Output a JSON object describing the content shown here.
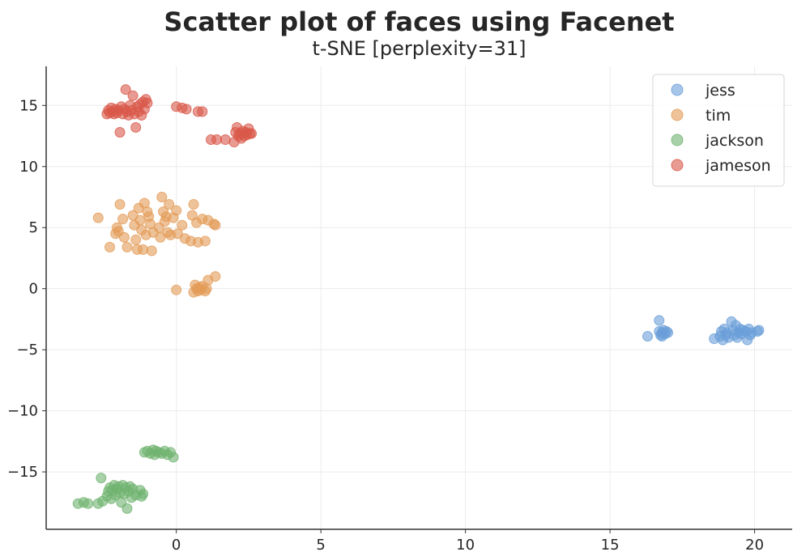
{
  "chart_data": {
    "type": "scatter",
    "title": "Scatter plot of faces using Facenet",
    "subtitle": "t-SNE [perplexity=31]",
    "xlabel": "",
    "ylabel": "",
    "xlim": [
      -4.5,
      21.3
    ],
    "ylim": [
      -19.7,
      18.2
    ],
    "xticks": [
      0,
      5,
      10,
      15,
      20
    ],
    "yticks": [
      15,
      10,
      5,
      0,
      -5,
      -10,
      -15
    ],
    "xtick_labels": [
      "0",
      "5",
      "10",
      "15",
      "20"
    ],
    "ytick_labels": [
      "15",
      "10",
      "5",
      "0",
      "−10",
      "−15"
    ],
    "ytick_labels_full": [
      "15",
      "10",
      "5",
      "0",
      "−5",
      "−10",
      "−15"
    ],
    "grid": true,
    "legend_position": "top-right",
    "series": [
      {
        "name": "jess",
        "color": "#6a9fd8",
        "points": [
          [
            16.3,
            -3.9
          ],
          [
            16.7,
            -2.6
          ],
          [
            16.7,
            -3.5
          ],
          [
            16.75,
            -3.8
          ],
          [
            16.8,
            -3.6
          ],
          [
            16.85,
            -3.4
          ],
          [
            16.9,
            -3.7
          ],
          [
            16.95,
            -3.5
          ],
          [
            17.0,
            -3.6
          ],
          [
            16.8,
            -3.9
          ],
          [
            18.6,
            -4.1
          ],
          [
            18.8,
            -3.9
          ],
          [
            18.85,
            -3.5
          ],
          [
            18.9,
            -4.2
          ],
          [
            18.95,
            -3.3
          ],
          [
            19.0,
            -3.8
          ],
          [
            19.05,
            -3.6
          ],
          [
            19.1,
            -4.0
          ],
          [
            19.2,
            -2.7
          ],
          [
            19.25,
            -3.4
          ],
          [
            19.3,
            -3.8
          ],
          [
            19.35,
            -3.0
          ],
          [
            19.4,
            -4.0
          ],
          [
            19.45,
            -3.6
          ],
          [
            19.5,
            -3.3
          ],
          [
            19.55,
            -3.7
          ],
          [
            19.6,
            -3.4
          ],
          [
            19.7,
            -3.5
          ],
          [
            19.75,
            -4.2
          ],
          [
            19.8,
            -3.3
          ],
          [
            19.85,
            -3.8
          ],
          [
            19.9,
            -3.6
          ],
          [
            20.1,
            -3.5
          ],
          [
            20.15,
            -3.4
          ]
        ]
      },
      {
        "name": "tim",
        "color": "#e39b57",
        "points": [
          [
            -2.7,
            5.8
          ],
          [
            -2.3,
            3.4
          ],
          [
            -2.1,
            4.5
          ],
          [
            -2.05,
            5.0
          ],
          [
            -2.0,
            4.7
          ],
          [
            -1.95,
            6.9
          ],
          [
            -1.85,
            5.7
          ],
          [
            -1.8,
            4.2
          ],
          [
            -1.7,
            3.4
          ],
          [
            -1.5,
            6.0
          ],
          [
            -1.45,
            5.2
          ],
          [
            -1.4,
            4.0
          ],
          [
            -1.35,
            3.2
          ],
          [
            -1.3,
            6.6
          ],
          [
            -1.25,
            5.6
          ],
          [
            -1.2,
            4.8
          ],
          [
            -1.15,
            3.2
          ],
          [
            -1.1,
            7.0
          ],
          [
            -1.05,
            4.4
          ],
          [
            -1.0,
            6.3
          ],
          [
            -0.95,
            5.9
          ],
          [
            -0.9,
            5.3
          ],
          [
            -0.85,
            3.1
          ],
          [
            -0.8,
            4.6
          ],
          [
            -0.6,
            5.0
          ],
          [
            -0.55,
            4.2
          ],
          [
            -0.5,
            7.5
          ],
          [
            -0.45,
            6.3
          ],
          [
            -0.4,
            5.5
          ],
          [
            -0.35,
            5.9
          ],
          [
            -0.3,
            4.6
          ],
          [
            -0.25,
            6.9
          ],
          [
            -0.2,
            4.4
          ],
          [
            -0.1,
            5.8
          ],
          [
            0.0,
            6.4
          ],
          [
            0.05,
            4.5
          ],
          [
            0.2,
            5.2
          ],
          [
            0.3,
            4.1
          ],
          [
            0.5,
            3.9
          ],
          [
            0.55,
            6.0
          ],
          [
            0.6,
            6.9
          ],
          [
            0.7,
            5.4
          ],
          [
            0.75,
            3.8
          ],
          [
            0.9,
            5.7
          ],
          [
            1.0,
            3.9
          ],
          [
            1.1,
            5.6
          ],
          [
            1.3,
            5.3
          ],
          [
            1.35,
            5.2
          ],
          [
            0.0,
            -0.1
          ],
          [
            0.6,
            -0.3
          ],
          [
            0.65,
            0.3
          ],
          [
            0.7,
            0.0
          ],
          [
            0.75,
            -0.2
          ],
          [
            0.8,
            0.1
          ],
          [
            0.85,
            -0.1
          ],
          [
            0.9,
            0.2
          ],
          [
            1.0,
            -0.2
          ],
          [
            1.05,
            0.0
          ],
          [
            1.1,
            0.7
          ],
          [
            1.35,
            1.0
          ]
        ]
      },
      {
        "name": "jackson",
        "color": "#6fb36f",
        "points": [
          [
            -3.4,
            -17.6
          ],
          [
            -3.2,
            -17.5
          ],
          [
            -3.05,
            -17.6
          ],
          [
            -2.7,
            -17.6
          ],
          [
            -2.6,
            -15.5
          ],
          [
            -2.55,
            -17.4
          ],
          [
            -2.4,
            -17.0
          ],
          [
            -2.35,
            -16.6
          ],
          [
            -2.3,
            -16.3
          ],
          [
            -2.25,
            -17.2
          ],
          [
            -2.2,
            -16.5
          ],
          [
            -2.15,
            -16.1
          ],
          [
            -2.1,
            -16.9
          ],
          [
            -2.05,
            -16.4
          ],
          [
            -2.0,
            -16.2
          ],
          [
            -1.95,
            -16.7
          ],
          [
            -1.9,
            -17.5
          ],
          [
            -1.85,
            -16.1
          ],
          [
            -1.8,
            -16.8
          ],
          [
            -1.75,
            -16.3
          ],
          [
            -1.7,
            -18.0
          ],
          [
            -1.65,
            -16.6
          ],
          [
            -1.6,
            -16.2
          ],
          [
            -1.55,
            -17.1
          ],
          [
            -1.5,
            -16.4
          ],
          [
            -1.4,
            -16.9
          ],
          [
            -1.25,
            -16.5
          ],
          [
            -1.2,
            -17.0
          ],
          [
            -1.15,
            -16.8
          ],
          [
            -1.1,
            -13.4
          ],
          [
            -1.0,
            -13.3
          ],
          [
            -0.9,
            -13.5
          ],
          [
            -0.8,
            -13.2
          ],
          [
            -0.75,
            -13.6
          ],
          [
            -0.7,
            -13.3
          ],
          [
            -0.6,
            -13.4
          ],
          [
            -0.5,
            -13.5
          ],
          [
            -0.4,
            -13.3
          ],
          [
            -0.3,
            -13.6
          ],
          [
            -0.2,
            -13.4
          ],
          [
            -0.1,
            -13.8
          ]
        ]
      },
      {
        "name": "jameson",
        "color": "#d9584a",
        "points": [
          [
            -2.4,
            14.3
          ],
          [
            -2.35,
            14.6
          ],
          [
            -2.3,
            14.4
          ],
          [
            -2.25,
            14.8
          ],
          [
            -2.2,
            14.5
          ],
          [
            -2.15,
            14.3
          ],
          [
            -2.1,
            14.7
          ],
          [
            -2.05,
            14.4
          ],
          [
            -2.0,
            14.6
          ],
          [
            -1.95,
            12.8
          ],
          [
            -1.9,
            14.9
          ],
          [
            -1.85,
            14.3
          ],
          [
            -1.8,
            14.7
          ],
          [
            -1.75,
            16.3
          ],
          [
            -1.7,
            14.5
          ],
          [
            -1.65,
            14.2
          ],
          [
            -1.6,
            15.0
          ],
          [
            -1.55,
            14.6
          ],
          [
            -1.5,
            15.8
          ],
          [
            -1.45,
            14.3
          ],
          [
            -1.4,
            13.2
          ],
          [
            -1.35,
            14.9
          ],
          [
            -1.3,
            14.5
          ],
          [
            -1.25,
            15.1
          ],
          [
            -1.2,
            14.2
          ],
          [
            -1.15,
            15.3
          ],
          [
            -1.1,
            14.7
          ],
          [
            -1.05,
            15.5
          ],
          [
            -1.0,
            15.2
          ],
          [
            0.0,
            14.9
          ],
          [
            0.2,
            14.8
          ],
          [
            0.35,
            14.7
          ],
          [
            0.75,
            14.5
          ],
          [
            0.9,
            14.5
          ],
          [
            1.2,
            12.2
          ],
          [
            1.4,
            12.2
          ],
          [
            1.7,
            12.2
          ],
          [
            2.0,
            12.0
          ],
          [
            2.05,
            12.8
          ],
          [
            2.1,
            13.2
          ],
          [
            2.15,
            12.5
          ],
          [
            2.2,
            12.7
          ],
          [
            2.25,
            12.3
          ],
          [
            2.3,
            12.9
          ],
          [
            2.35,
            12.5
          ],
          [
            2.4,
            12.8
          ],
          [
            2.45,
            12.6
          ],
          [
            2.5,
            13.1
          ],
          [
            2.55,
            12.7
          ],
          [
            2.6,
            12.7
          ]
        ]
      }
    ]
  }
}
